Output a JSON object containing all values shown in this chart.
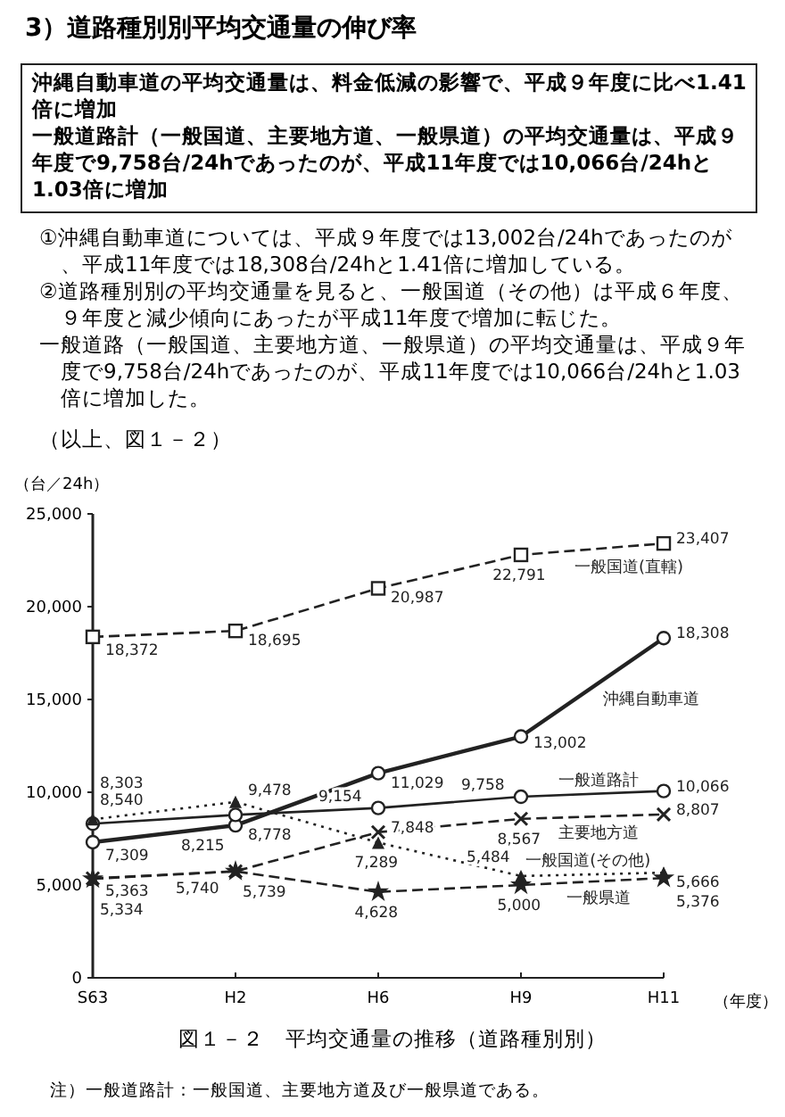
{
  "chart_data": {
    "type": "line",
    "title": "3）道路種別別平均交通量の伸び率",
    "subtitle": "沖縄自動車道の平均交通量は、料金低減の影響で、平成９年度に比べ1.41倍に増加",
    "annotations": [
      "一般道路計（一般国道、主要地方道、一般県道）の平均交通量は、平成９年度で9,758台/24hであったのが、平成11年度では10,066台/24hと1.03倍に増加",
      "①沖縄自動車道については、平成９年度では13,002台/24hであったのが、平成11年度では18,308台/24hと1.41倍に増加している。",
      "②道路種別別の平均交通量を見ると、一般国道（その他）は平成６年度、９年度と減少傾向にあったが平成11年度で増加に転じた。",
      "一般道路（一般国道、主要地方道、一般県道）の平均交通量は、平成９年度で9,758台/24hであったのが、平成11年度では10,066台/24hと1.03倍に増加した。",
      "（以上、図１－２）",
      "図１－２　平均交通量の推移（道路種別別）",
      "注）一般道路計：一般国道、主要地方道及び一般県道である。"
    ],
    "ylabel": "（台／24h）",
    "xlabel": "（年度）",
    "categories": [
      "S63",
      "H2",
      "H6",
      "H9",
      "H11"
    ],
    "ylim": [
      0,
      25000
    ],
    "yticks": [
      0,
      {
        "value": 5000,
        "label": "5,000"
      },
      {
        "value": 10000,
        "label": "10,000"
      },
      {
        "value": 15000,
        "label": "15,000"
      },
      {
        "value": 20000,
        "label": "20,000"
      },
      {
        "value": 25000,
        "label": "25,000"
      }
    ],
    "series": [
      {
        "name": "一般国道(直轄)",
        "color": "#222222",
        "marker": "square",
        "line_style": "dashed",
        "values": [
          18372,
          18695,
          20987,
          22791,
          23407
        ],
        "value_labels": [
          "18,372",
          "18,695",
          "20,987",
          "22,791",
          "23,407"
        ]
      },
      {
        "name": "沖縄自動車道",
        "color": "#222222",
        "marker": "circle",
        "line_style": "solid",
        "values": [
          7309,
          8215,
          11029,
          13002,
          18308
        ],
        "value_labels": [
          "7,309",
          "8,215",
          "11,029",
          "13,002",
          "18,308"
        ]
      },
      {
        "name": "一般道路計",
        "color": "#222222",
        "marker": "circle",
        "line_style": "solid",
        "values": [
          8303,
          8778,
          9154,
          9758,
          10066
        ],
        "value_labels": [
          "8,303",
          "8,778",
          "9,154",
          "9,758",
          "10,066"
        ]
      },
      {
        "name": "主要地方道",
        "color": "#222222",
        "marker": "cross",
        "line_style": "dashed",
        "values": [
          5363,
          5740,
          7848,
          8567,
          8807
        ],
        "value_labels": [
          "5,363",
          "5,740",
          "7,848",
          "8,567",
          "8,807"
        ]
      },
      {
        "name": "一般国道(その他)",
        "color": "#222222",
        "marker": "triangle",
        "line_style": "dotted",
        "values": [
          8540,
          9478,
          7289,
          5484,
          5666
        ],
        "value_labels": [
          "8,540",
          "9,478",
          "7,289",
          "5,484",
          "5,666"
        ]
      },
      {
        "name": "一般県道",
        "color": "#222222",
        "marker": "star",
        "line_style": "dashed",
        "values": [
          5334,
          5739,
          4628,
          5000,
          5376
        ],
        "value_labels": [
          "5,334",
          "5,739",
          "4,628",
          "5,000",
          "5,376"
        ]
      }
    ]
  }
}
